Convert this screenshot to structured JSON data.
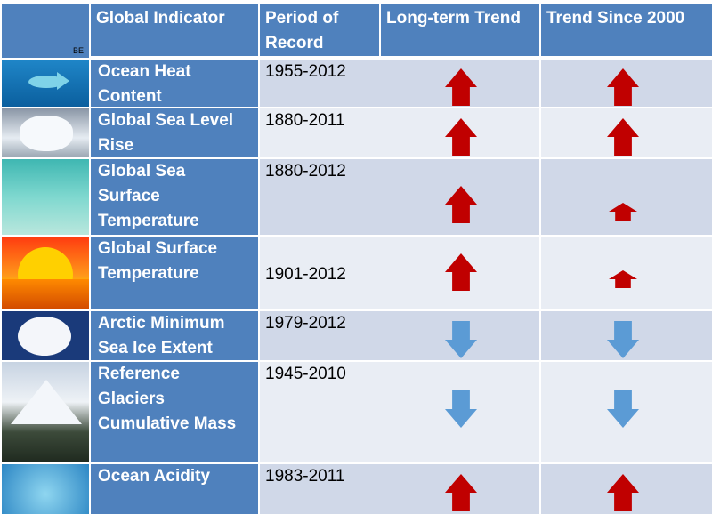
{
  "table": {
    "corner_mark": "BE",
    "headers": {
      "indicator": "Global Indicator",
      "period": "Period of Record",
      "long_term": "Long-term Trend",
      "since_2000": "Trend Since 2000"
    },
    "rows": [
      {
        "indicator": "Ocean Heat Content",
        "period": "1955-2012",
        "long_term": "up",
        "since_2000": "up",
        "since_2000_size": "large",
        "image": "ocean-fish-image"
      },
      {
        "indicator": "Global Sea Level Rise",
        "period": "1880-2011",
        "long_term": "up",
        "since_2000": "up",
        "since_2000_size": "large",
        "image": "crashing-wave-image"
      },
      {
        "indicator": "Global  Sea Surface Temperature",
        "period": "1880-2012",
        "long_term": "up",
        "since_2000": "up",
        "since_2000_size": "small",
        "image": "turquoise-water-image"
      },
      {
        "indicator": "Global Surface Temperature",
        "period": "1901-2012",
        "long_term": "up",
        "since_2000": "up",
        "since_2000_size": "small",
        "image": "sunset-image"
      },
      {
        "indicator": "Arctic Minimum Sea Ice Extent",
        "period": "1979-2012",
        "long_term": "down",
        "since_2000": "down",
        "since_2000_size": "large",
        "image": "arctic-ice-map-image"
      },
      {
        "indicator": "Reference Glaciers Cumulative Mass",
        "period": "1945-2010",
        "long_term": "down",
        "since_2000": "down",
        "since_2000_size": "large",
        "image": "glacier-mountain-image"
      },
      {
        "indicator": "Ocean Acidity",
        "period": "1983-2011",
        "long_term": "up",
        "since_2000": "up",
        "since_2000_size": "large",
        "image": "coral-reef-image"
      }
    ]
  },
  "colors": {
    "header_blue": "#4f81bd",
    "row_dark": "#d0d8e8",
    "row_light": "#e9edf4",
    "up_arrow": "#c00000",
    "down_arrow": "#5b9bd5"
  }
}
